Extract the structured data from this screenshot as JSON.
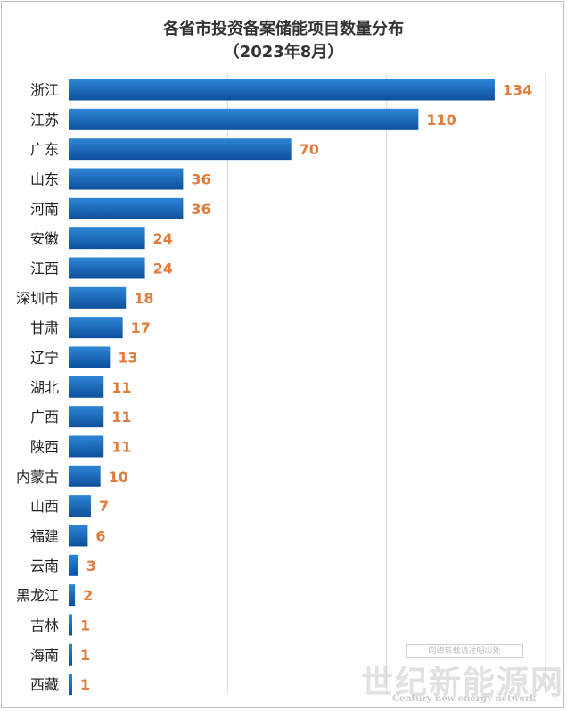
{
  "chart_data": {
    "type": "bar",
    "orientation": "horizontal",
    "title": "各省市投资备案储能项目数量分布",
    "subtitle": "（2023年8月）",
    "categories": [
      "浙江",
      "江苏",
      "广东",
      "山东",
      "河南",
      "安徽",
      "江西",
      "深圳市",
      "甘肃",
      "辽宁",
      "湖北",
      "广西",
      "陕西",
      "内蒙古",
      "山西",
      "福建",
      "云南",
      "黑龙江",
      "吉林",
      "海南",
      "西藏"
    ],
    "values": [
      134,
      110,
      70,
      36,
      36,
      24,
      24,
      18,
      17,
      13,
      11,
      11,
      11,
      10,
      7,
      6,
      3,
      2,
      1,
      1,
      1
    ],
    "xlim": [
      0,
      150
    ],
    "grid": true,
    "legend": "none",
    "colors": {
      "bar_top": "#2e86d6",
      "bar_bottom": "#0d4f9c",
      "value_label": "#e07b39"
    }
  },
  "watermark": {
    "text": "世纪新能源网",
    "english": "Century new energy network",
    "sub": "网络转载请注明出处"
  }
}
